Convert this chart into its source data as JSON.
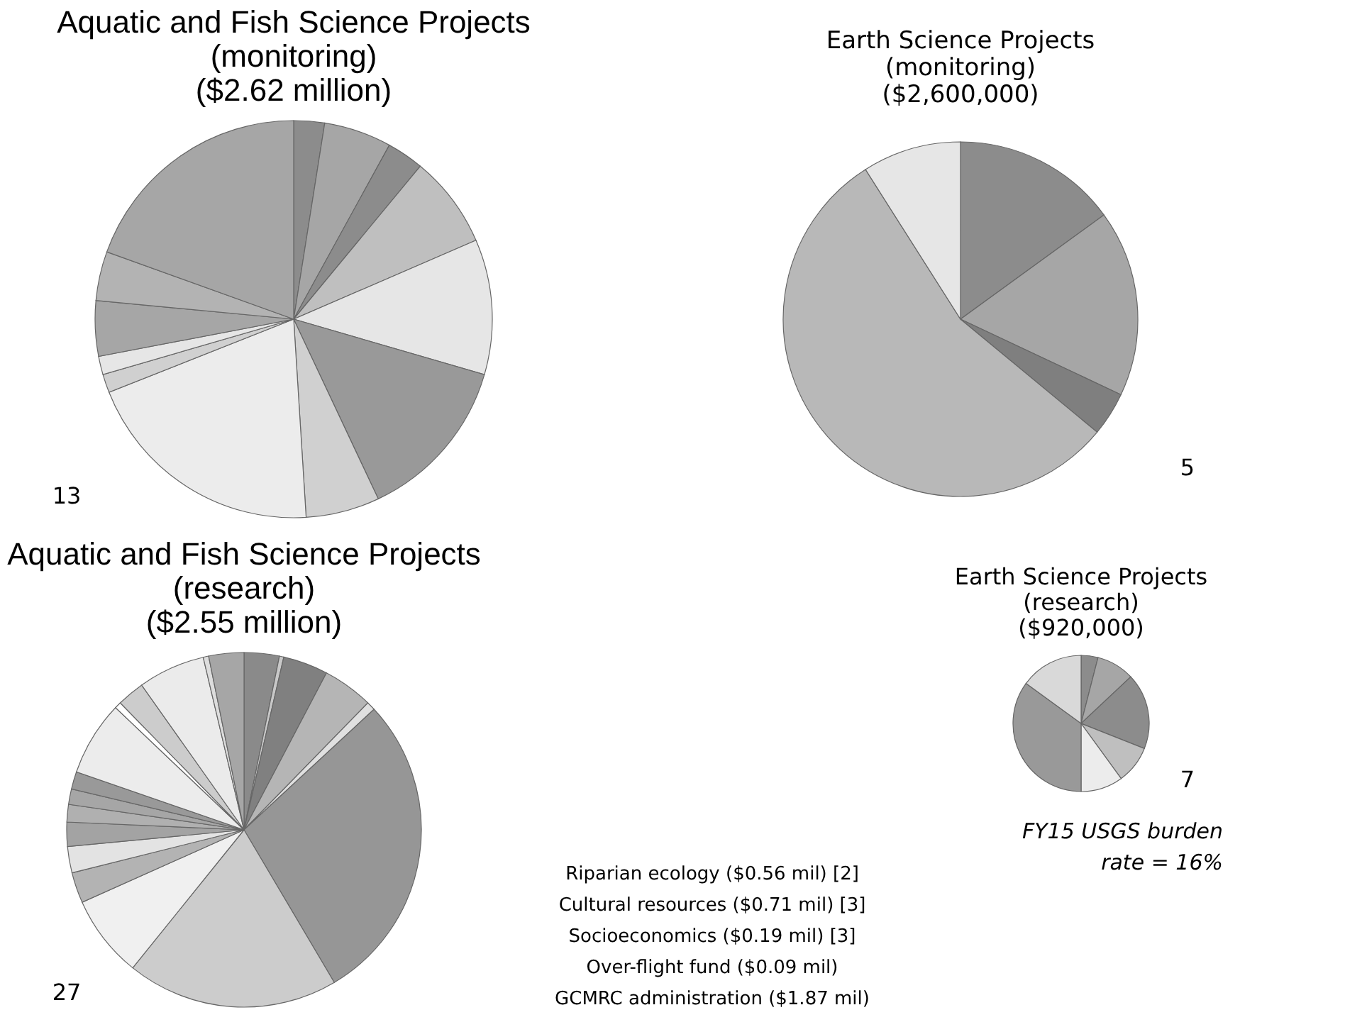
{
  "chart_data": [
    {
      "type": "pie",
      "title": "Aquatic and Fish Science Projects\n(monitoring)\n($2.62 million)",
      "categories": [
        null,
        null,
        null,
        null,
        null,
        null,
        null,
        null,
        null,
        null,
        null,
        null,
        null
      ],
      "values": [
        2.5,
        5.5,
        3,
        7.5,
        11,
        13.5,
        6,
        20,
        1.5,
        1.5,
        4.5,
        4,
        19.5
      ],
      "colors": [
        "#8c8c8c",
        "#a6a6a6",
        "#8c8c8c",
        "#bfbfbf",
        "#e6e6e6",
        "#999999",
        "#d0d0d0",
        "#ececec",
        "#d0d0d0",
        "#e6e6e6",
        "#a6a6a6",
        "#b3b3b3",
        "#a6a6a6"
      ],
      "annotations": [
        "13"
      ]
    },
    {
      "type": "pie",
      "title": "Earth Science Projects\n(monitoring)\n($2,600,000)",
      "categories": [
        null,
        null,
        null,
        null,
        null
      ],
      "values": [
        15,
        17,
        4,
        55,
        9
      ],
      "colors": [
        "#8c8c8c",
        "#a6a6a6",
        "#7f7f7f",
        "#b8b8b8",
        "#e6e6e6"
      ],
      "annotations": [
        "5"
      ]
    },
    {
      "type": "pie",
      "title": "Aquatic and Fish Science Projects\n(research)\n($2.55 million)",
      "categories": [
        null,
        null,
        null,
        null,
        null,
        null,
        null,
        null,
        null,
        null,
        null,
        null,
        null,
        null,
        null,
        null,
        null,
        null,
        null,
        null
      ],
      "values": [
        3.2,
        0.4,
        4.1,
        4.6,
        0.8,
        28.4,
        19.3,
        7.5,
        2.8,
        2.4,
        2.2,
        1.6,
        1.4,
        1.6,
        6.8,
        0.6,
        2.5,
        6.1,
        0.5,
        3.2
      ],
      "colors": [
        "#8a8a8a",
        "#c8c8c8",
        "#808080",
        "#b5b5b5",
        "#e0e0e0",
        "#969696",
        "#cccccc",
        "#f0f0f0",
        "#b3b3b3",
        "#e3e3e3",
        "#a3a3a3",
        "#b0b0b0",
        "#a6a6a6",
        "#999999",
        "#ececec",
        "#ffffff",
        "#cccccc",
        "#ebebeb",
        "#dddddd",
        "#a6a6a6"
      ],
      "annotations": [
        "27"
      ]
    },
    {
      "type": "other",
      "annotations": [
        "Riparian ecology ($0.56 mil) [2]",
        "Cultural resources ($0.71 mil) [3]",
        "Socioeconomics ($0.19 mil) [3]",
        "Over-flight fund ($0.09 mil)",
        "GCMRC administration ($1.87 mil)"
      ]
    },
    {
      "type": "pie",
      "title": "Earth Science Projects\n(research)\n($920,000)",
      "categories": [
        null,
        null,
        null,
        null,
        null,
        null,
        null
      ],
      "values": [
        4,
        9,
        18,
        9,
        10,
        35,
        15
      ],
      "colors": [
        "#8c8c8c",
        "#a6a6a6",
        "#8c8c8c",
        "#bfbfbf",
        "#ececec",
        "#999999",
        "#d9d9d9"
      ],
      "annotations": [
        "7"
      ]
    },
    {
      "type": "other",
      "annotations": [
        "FY15 USGS burden\nrate = 16%"
      ]
    }
  ]
}
